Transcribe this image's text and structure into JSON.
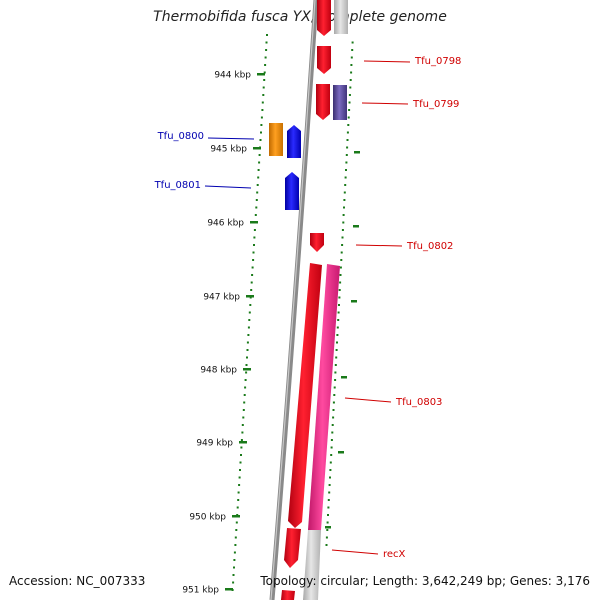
{
  "title": "Thermobifida fusca YX, complete genome",
  "footer": {
    "accession": "Accession: NC_007333",
    "summary": "Topology: circular; Length: 3,642,249 bp; Genes: 3,176"
  },
  "ticks": [
    "944 kbp",
    "945 kbp",
    "946 kbp",
    "947 kbp",
    "948 kbp",
    "949 kbp",
    "950 kbp",
    "951 kbp"
  ],
  "genes": [
    {
      "label": "Tfu_0798",
      "color": "#e8001c",
      "strand": "forward"
    },
    {
      "label": "Tfu_0799",
      "color": "#e8001c",
      "strand": "forward"
    },
    {
      "label": "Tfu_0800",
      "color": "#1010e0",
      "strand": "reverse"
    },
    {
      "label": "Tfu_0801",
      "color": "#1010e0",
      "strand": "reverse"
    },
    {
      "label": "Tfu_0802",
      "color": "#e8001c",
      "strand": "forward"
    },
    {
      "label": "Tfu_0803",
      "color": "#e8001c",
      "strand": "forward"
    },
    {
      "label": "recX",
      "color": "#e8001c",
      "strand": "forward"
    }
  ],
  "colors": {
    "forward_gene": "#e8001c",
    "reverse_gene": "#1010e0",
    "orange_feature": "#f08c00",
    "purple_feature": "#5a4a9c",
    "pink_feature": "#f0338c",
    "backbone": "#808080",
    "tick": "#1a7a1a",
    "forward_label": "#d00000",
    "reverse_label": "#0000b0"
  }
}
